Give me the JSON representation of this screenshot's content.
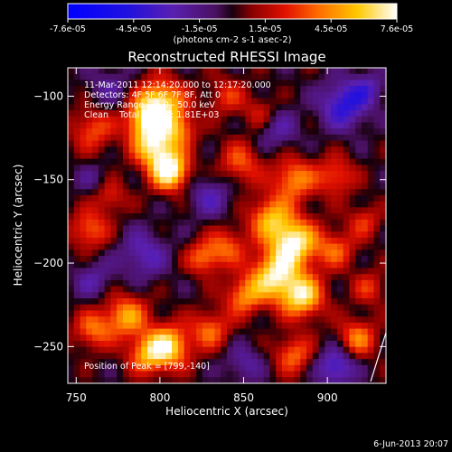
{
  "chart_data": {
    "type": "heatmap",
    "title": "Reconstructed RHESSI Image",
    "xlabel": "Heliocentric X (arcsec)",
    "ylabel": "Heliocentric Y (arcsec)",
    "xlim": [
      745,
      935
    ],
    "ylim": [
      -272,
      -83
    ],
    "xticks": [
      750,
      800,
      850,
      900
    ],
    "yticks": [
      -100,
      -150,
      -200,
      -250
    ],
    "colorbar": {
      "range": [
        -7.6e-05,
        7.6e-05
      ],
      "tick_labels": [
        "-7.6e-05",
        "-4.5e-05",
        "-1.5e-05",
        "1.5e-05",
        "4.5e-05",
        "7.6e-05"
      ],
      "units_label": "(photons cm-2 s-1 asec-2)",
      "colormap": "blue-purple-red-orange-yellow-white"
    },
    "annotations": [
      "11-Mar-2011 12:14:20.000 to 12:17:20.000",
      "Detectors: 4F 5F 6F 7F 8F, Att 0",
      "Energy Range: 25.0 - 50.0 keV",
      "Clean    Total counts: 1.81E+03"
    ],
    "peak_label": "Position of Peak = [799,-140]",
    "peak": [
      799,
      -140
    ],
    "grid": false,
    "sources": [
      {
        "x": 800,
        "y": -105,
        "amp": 0.95,
        "sig": 10
      },
      {
        "x": 797,
        "y": -130,
        "amp": 0.85,
        "sig": 9
      },
      {
        "x": 806,
        "y": -145,
        "amp": 1.0,
        "sig": 8
      },
      {
        "x": 790,
        "y": -115,
        "amp": 0.55,
        "sig": 8
      },
      {
        "x": 812,
        "y": -120,
        "amp": 0.45,
        "sig": 7
      },
      {
        "x": 760,
        "y": -120,
        "amp": 0.45,
        "sig": 9
      },
      {
        "x": 758,
        "y": -180,
        "amp": 0.5,
        "sig": 8
      },
      {
        "x": 770,
        "y": -160,
        "amp": 0.35,
        "sig": 7
      },
      {
        "x": 848,
        "y": -140,
        "amp": 0.45,
        "sig": 9
      },
      {
        "x": 880,
        "y": -150,
        "amp": 0.6,
        "sig": 9
      },
      {
        "x": 905,
        "y": -148,
        "amp": 0.45,
        "sig": 8
      },
      {
        "x": 866,
        "y": -173,
        "amp": 0.65,
        "sig": 9
      },
      {
        "x": 880,
        "y": -188,
        "amp": 0.95,
        "sig": 10
      },
      {
        "x": 868,
        "y": -208,
        "amp": 0.85,
        "sig": 10
      },
      {
        "x": 885,
        "y": -220,
        "amp": 0.85,
        "sig": 9
      },
      {
        "x": 850,
        "y": -220,
        "amp": 0.55,
        "sig": 8
      },
      {
        "x": 840,
        "y": -190,
        "amp": 0.45,
        "sig": 8
      },
      {
        "x": 826,
        "y": -197,
        "amp": 0.5,
        "sig": 7
      },
      {
        "x": 905,
        "y": -192,
        "amp": 0.45,
        "sig": 8
      },
      {
        "x": 780,
        "y": -232,
        "amp": 0.65,
        "sig": 9
      },
      {
        "x": 760,
        "y": -240,
        "amp": 0.5,
        "sig": 8
      },
      {
        "x": 805,
        "y": -250,
        "amp": 0.85,
        "sig": 9
      },
      {
        "x": 792,
        "y": -255,
        "amp": 0.55,
        "sig": 8
      },
      {
        "x": 830,
        "y": -240,
        "amp": 0.5,
        "sig": 8
      },
      {
        "x": 880,
        "y": -255,
        "amp": 0.5,
        "sig": 8
      },
      {
        "x": 918,
        "y": -245,
        "amp": 0.55,
        "sig": 8
      },
      {
        "x": 925,
        "y": -215,
        "amp": 0.35,
        "sig": 7
      },
      {
        "x": 860,
        "y": -110,
        "amp": 0.3,
        "sig": 7
      },
      {
        "x": 840,
        "y": -100,
        "amp": 0.35,
        "sig": 8
      },
      {
        "x": 922,
        "y": -175,
        "amp": 0.35,
        "sig": 7
      },
      {
        "x": 770,
        "y": -95,
        "amp": -0.25,
        "sig": 9
      },
      {
        "x": 910,
        "y": -105,
        "amp": -0.6,
        "sig": 10
      },
      {
        "x": 870,
        "y": -120,
        "amp": -0.3,
        "sig": 9
      },
      {
        "x": 830,
        "y": -160,
        "amp": -0.35,
        "sig": 9
      },
      {
        "x": 790,
        "y": -195,
        "amp": -0.4,
        "sig": 10
      },
      {
        "x": 760,
        "y": -210,
        "amp": -0.3,
        "sig": 8
      },
      {
        "x": 905,
        "y": -262,
        "amp": -0.55,
        "sig": 8
      },
      {
        "x": 925,
        "y": -95,
        "amp": -0.3,
        "sig": 7
      },
      {
        "x": 850,
        "y": -260,
        "amp": -0.3,
        "sig": 8
      },
      {
        "x": 760,
        "y": -150,
        "amp": -0.2,
        "sig": 7
      }
    ]
  },
  "timestamp": "6-Jun-2013 20:07"
}
